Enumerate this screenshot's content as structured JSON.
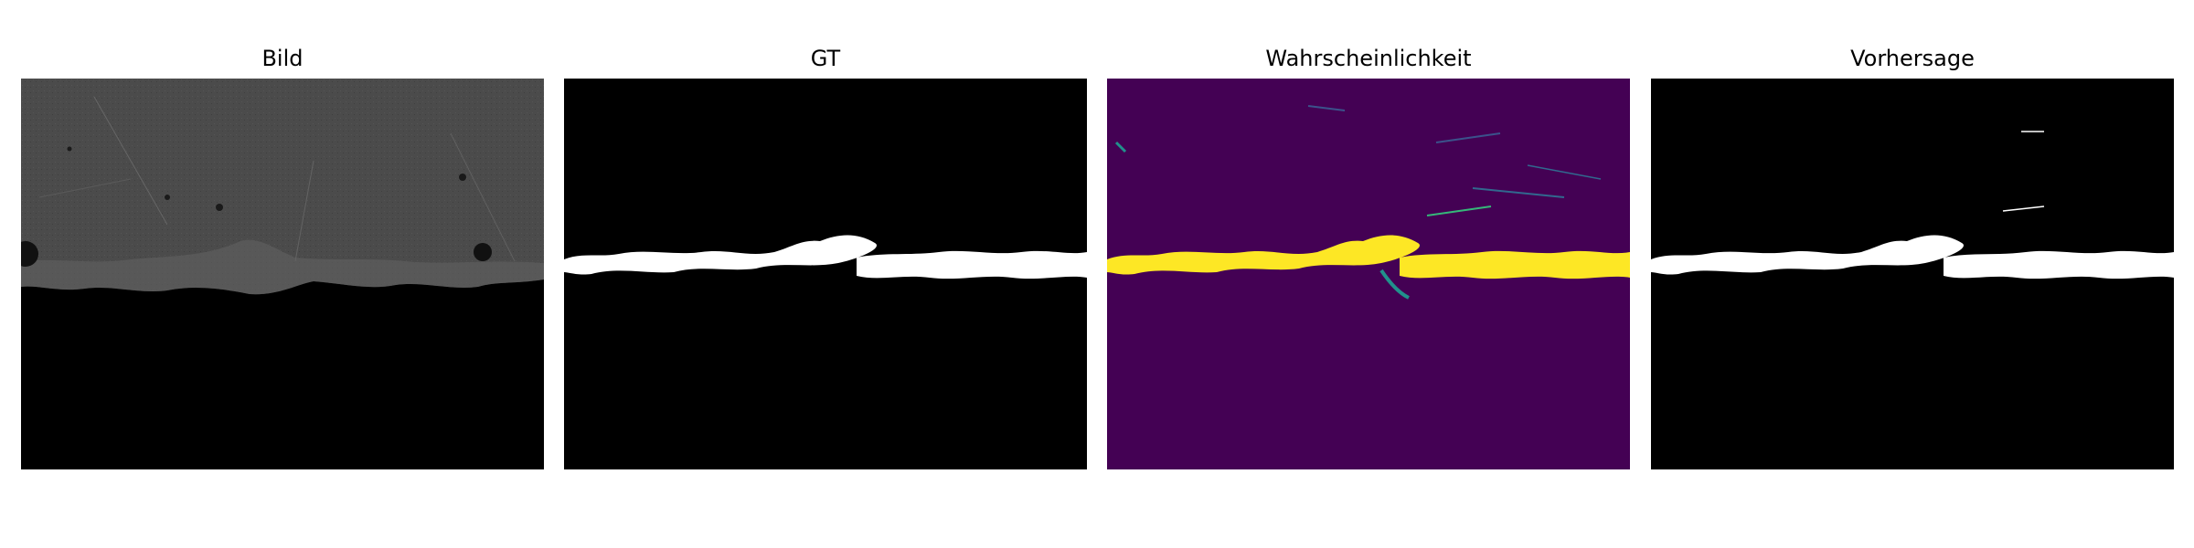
{
  "figure": {
    "panels": [
      {
        "title": "Bild"
      },
      {
        "title": "GT"
      },
      {
        "title": "Wahrscheinlichkeit"
      },
      {
        "title": "Vorhersage"
      }
    ]
  },
  "colors": {
    "background": "#ffffff",
    "image_gray": "#4a4a4a",
    "mask_black": "#000000",
    "mask_white": "#ffffff",
    "viridis_low": "#440154",
    "viridis_high": "#fde725",
    "viridis_mid": "#21918c"
  }
}
